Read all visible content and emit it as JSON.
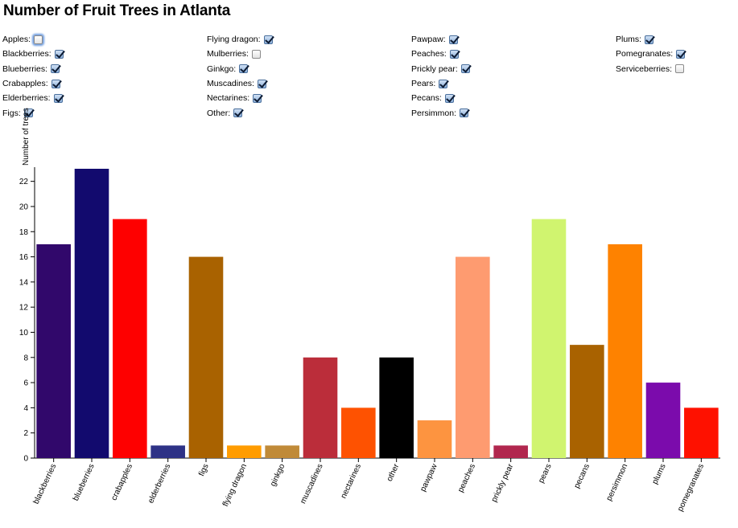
{
  "title": "Number of Fruit Trees in Atlanta",
  "filters": [
    [
      {
        "label": "Apples:",
        "checked": false,
        "focused": true
      },
      {
        "label": "Blackberries:",
        "checked": true
      },
      {
        "label": "Blueberries:",
        "checked": true
      },
      {
        "label": "Crabapples:",
        "checked": true
      },
      {
        "label": "Elderberries:",
        "checked": true
      },
      {
        "label": "Figs:",
        "checked": true
      }
    ],
    [
      {
        "label": "Flying dragon:",
        "checked": true
      },
      {
        "label": "Mulberries:",
        "checked": false
      },
      {
        "label": "Ginkgo:",
        "checked": true
      },
      {
        "label": "Muscadines:",
        "checked": true
      },
      {
        "label": "Nectarines:",
        "checked": true
      },
      {
        "label": "Other:",
        "checked": true
      }
    ],
    [
      {
        "label": "Pawpaw:",
        "checked": true
      },
      {
        "label": "Peaches:",
        "checked": true
      },
      {
        "label": "Prickly pear:",
        "checked": true
      },
      {
        "label": "Pears:",
        "checked": true
      },
      {
        "label": "Pecans:",
        "checked": true
      },
      {
        "label": "Persimmon:",
        "checked": true
      }
    ],
    [
      {
        "label": "Plums:",
        "checked": true
      },
      {
        "label": "Pomegranates:",
        "checked": true
      },
      {
        "label": "Serviceberries:",
        "checked": false
      }
    ]
  ],
  "chart_data": {
    "type": "bar",
    "ylabel": "Number of trees",
    "ylim": [
      0,
      23
    ],
    "yticks": [
      0,
      2,
      4,
      6,
      8,
      10,
      12,
      14,
      16,
      18,
      20,
      22
    ],
    "categories": [
      "blackberries",
      "blueberries",
      "crabapples",
      "elderberries",
      "figs",
      "flying dragon",
      "ginkgo",
      "muscadines",
      "nectarines",
      "other",
      "pawpaw",
      "peaches",
      "prickly pear",
      "pears",
      "pecans",
      "persimmon",
      "plums",
      "pomegranates"
    ],
    "values": [
      17,
      23,
      19,
      1,
      16,
      1,
      1,
      8,
      4,
      8,
      3,
      16,
      1,
      19,
      9,
      17,
      6,
      4
    ],
    "colors": [
      "#31086b",
      "#120a6e",
      "#fe0000",
      "#2e3286",
      "#a96200",
      "#ff9c00",
      "#c08a38",
      "#bb2d3a",
      "#fe5201",
      "#000000",
      "#fd9440",
      "#fe9b70",
      "#b1274e",
      "#d0f46f",
      "#a96200",
      "#fe8200",
      "#7b0bac",
      "#fe1100"
    ]
  }
}
